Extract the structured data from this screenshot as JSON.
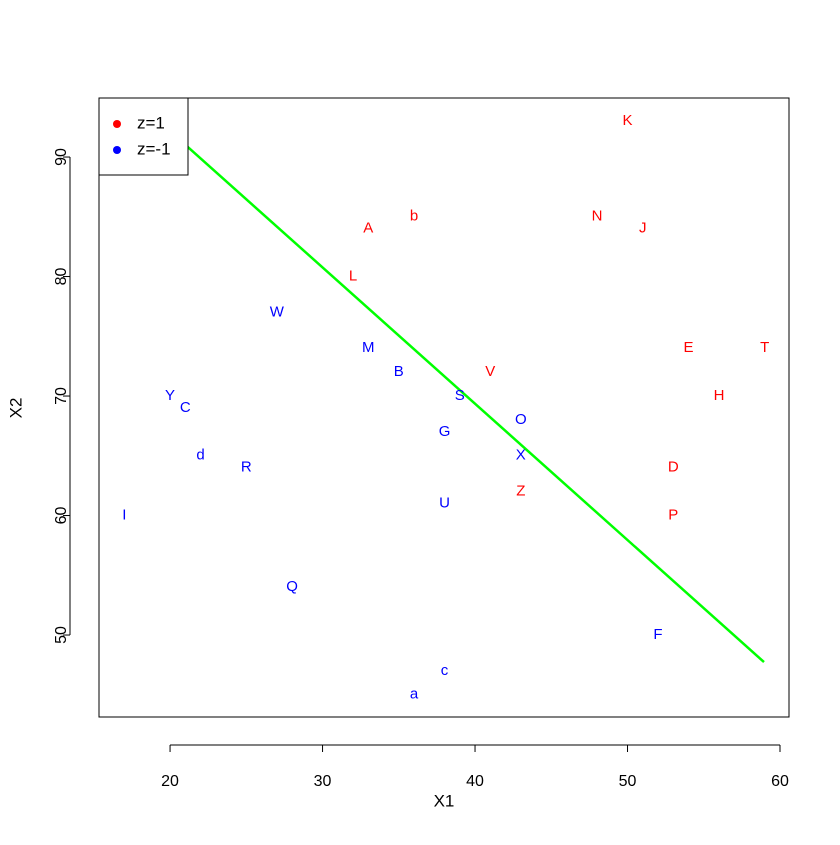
{
  "chart_data": {
    "type": "scatter",
    "xlabel": "X1",
    "ylabel": "X2",
    "xlim": [
      15.34,
      60.59
    ],
    "ylim": [
      43.14,
      94.94
    ],
    "xticks": [
      20,
      30,
      40,
      50,
      60
    ],
    "yticks": [
      50,
      60,
      70,
      80,
      90
    ],
    "legend_position": "top-left",
    "series": [
      {
        "name": "z=1",
        "color": "#ff0000",
        "labels": [
          "K",
          "b",
          "N",
          "A",
          "J",
          "L",
          "E",
          "T",
          "V",
          "H",
          "D",
          "Z",
          "P"
        ],
        "x": [
          50,
          36,
          48,
          33,
          51,
          32,
          54,
          59,
          41,
          56,
          53,
          43,
          53
        ],
        "values": [
          93,
          85,
          85,
          84,
          84,
          80,
          74,
          74,
          72,
          70,
          64,
          62,
          60
        ]
      },
      {
        "name": "z=-1",
        "color": "#0000ff",
        "labels": [
          "W",
          "M",
          "B",
          "Y",
          "S",
          "C",
          "O",
          "G",
          "d",
          "X",
          "R",
          "U",
          "I",
          "Q",
          "F",
          "c",
          "a"
        ],
        "x": [
          27,
          33,
          35,
          20,
          39,
          21,
          43,
          38,
          22,
          43,
          25,
          38,
          17,
          28,
          52,
          38,
          36
        ],
        "values": [
          77,
          74,
          72,
          70,
          70,
          69,
          68,
          67,
          65,
          65,
          64,
          61,
          60,
          54,
          50,
          47,
          45
        ]
      }
    ],
    "line": {
      "color": "#00ff00",
      "x": [
        17.57,
        58.95
      ],
      "values": [
        94.94,
        47.74
      ]
    }
  }
}
